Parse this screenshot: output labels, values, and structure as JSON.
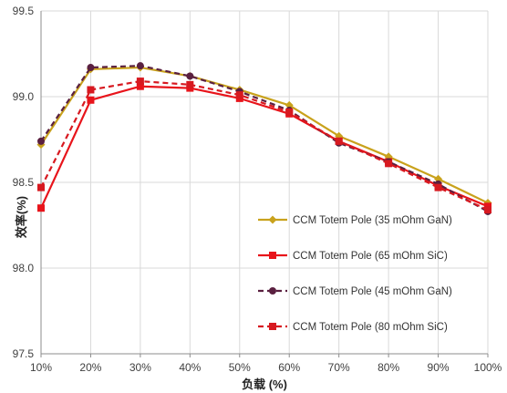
{
  "chart_data": {
    "type": "line",
    "title": "",
    "xlabel": "负载 (%)",
    "ylabel": "效率(%)",
    "categories": [
      "10%",
      "20%",
      "30%",
      "40%",
      "50%",
      "60%",
      "70%",
      "80%",
      "90%",
      "100%"
    ],
    "ylim": [
      97.5,
      99.5
    ],
    "yticks": [
      "97.5",
      "98.0",
      "98.5",
      "99.0",
      "99.5"
    ],
    "grid": true,
    "legend_position": "bottom-right",
    "series": [
      {
        "name": "CCM Totem Pole (35 mOhm GaN)",
        "color": "#C9A21C",
        "line": "solid",
        "marker": "diamond",
        "values": [
          98.72,
          99.16,
          99.17,
          99.12,
          99.04,
          98.95,
          98.77,
          98.65,
          98.52,
          98.38
        ]
      },
      {
        "name": "CCM Totem Pole (65 mOhm SiC)",
        "color": "#E8141B",
        "line": "solid",
        "marker": "square",
        "values": [
          98.35,
          98.98,
          99.06,
          99.05,
          98.99,
          98.9,
          98.74,
          98.62,
          98.48,
          98.36
        ]
      },
      {
        "name": "CCM Totem Pole (45 mOhm GaN)",
        "color": "#5A2040",
        "line": "dashed",
        "marker": "circle",
        "values": [
          98.74,
          99.17,
          99.18,
          99.12,
          99.03,
          98.92,
          98.73,
          98.62,
          98.49,
          98.33
        ]
      },
      {
        "name": "CCM Totem Pole (80 mOhm SiC)",
        "color": "#D71920",
        "line": "dashed",
        "marker": "square",
        "values": [
          98.47,
          99.04,
          99.09,
          99.07,
          99.01,
          98.91,
          98.74,
          98.61,
          98.47,
          98.34
        ]
      }
    ]
  }
}
